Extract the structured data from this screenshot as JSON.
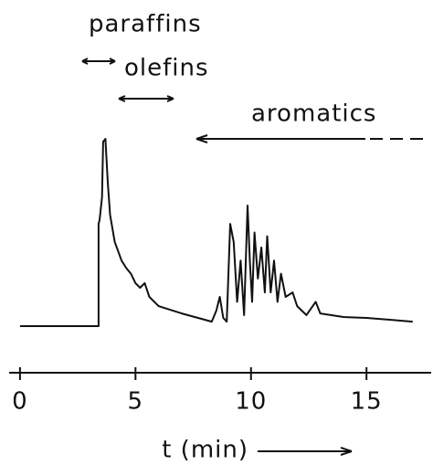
{
  "chart_data": {
    "type": "line",
    "annotations": [
      "paraffins",
      "olefins",
      "aromatics"
    ],
    "xlabel": "t (min)",
    "x": [
      0,
      3.4,
      3.4,
      3.45,
      3.55,
      3.6,
      3.7,
      3.8,
      3.9,
      4.1,
      4.4,
      4.6,
      4.8,
      5.0,
      5.2,
      5.4,
      5.6,
      6,
      7,
      8,
      8.3,
      8.5,
      8.65,
      8.8,
      8.95,
      9.1,
      9.25,
      9.4,
      9.55,
      9.7,
      9.85,
      9.95,
      10.05,
      10.15,
      10.3,
      10.45,
      10.6,
      10.7,
      10.85,
      11.0,
      11.15,
      11.3,
      11.5,
      11.8,
      12,
      12.4,
      12.8,
      13,
      14,
      15,
      16,
      17
    ],
    "values": [
      0,
      0,
      54.6,
      57,
      69,
      98.5,
      100,
      76.6,
      59.5,
      45,
      35,
      31,
      28,
      23,
      20.5,
      23,
      15.6,
      10.7,
      6.8,
      3.4,
      2.4,
      8.3,
      15.6,
      4.4,
      2.4,
      54.6,
      45,
      13,
      35,
      5.9,
      64.4,
      35,
      13,
      50,
      25.4,
      42,
      18,
      48,
      18,
      35,
      13,
      28,
      15.6,
      18,
      10.7,
      5.9,
      13,
      6.8,
      4.9,
      4.4,
      3.4,
      2.4
    ],
    "color": "#111111",
    "xlim": [
      -0.47,
      17.8
    ],
    "xticks": [
      0,
      5,
      10,
      15
    ],
    "ylim": [
      0,
      100
    ]
  }
}
